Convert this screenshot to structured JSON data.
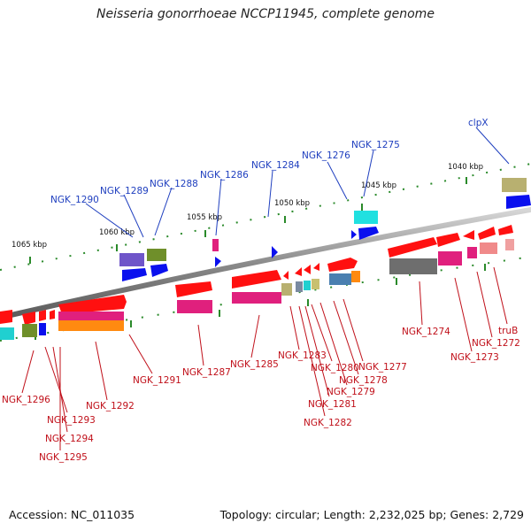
{
  "title": "Neisseria gonorrhoeae NCCP11945, complete genome",
  "footer": {
    "accession": "Accession: NC_011035",
    "summary": "Topology: circular; Length: 2,232,025 bp; Genes: 2,729"
  },
  "scale_labels": [
    "1065 kbp",
    "1060 kbp",
    "1055 kbp",
    "1050 kbp",
    "1045 kbp",
    "1040 kbp"
  ],
  "forward_genes": [
    "NGK_1290",
    "NGK_1289",
    "NGK_1288",
    "NGK_1286",
    "NGK_1284",
    "NGK_1276",
    "NGK_1275",
    "clpX"
  ],
  "reverse_genes": [
    "NGK_1296",
    "NGK_1293",
    "NGK_1294",
    "NGK_1295",
    "NGK_1292",
    "NGK_1291",
    "NGK_1287",
    "NGK_1285",
    "NGK_1283",
    "NGK_1282",
    "NGK_1281",
    "NGK_1280",
    "NGK_1279",
    "NGK_1278",
    "NGK_1277",
    "NGK_1274",
    "NGK_1273",
    "NGK_1272",
    "truB"
  ],
  "colors": {
    "backbone": "#7a7a7a",
    "reverse_gene": "#ff0000",
    "forward_gene": "#0000ff",
    "label_forward": "#1f3fbf",
    "label_reverse": "#c0101a",
    "tick": "#2a8a2a"
  }
}
